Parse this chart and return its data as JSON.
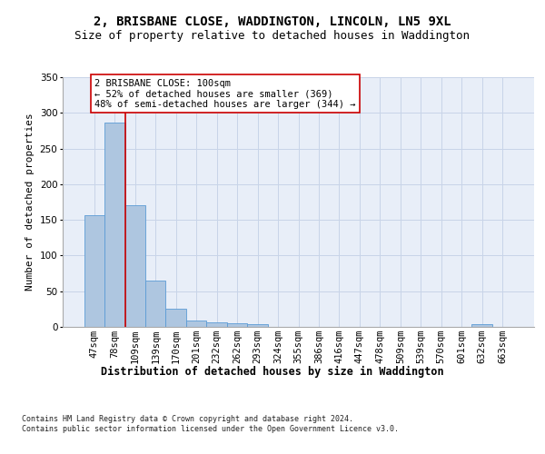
{
  "title1": "2, BRISBANE CLOSE, WADDINGTON, LINCOLN, LN5 9XL",
  "title2": "Size of property relative to detached houses in Waddington",
  "xlabel": "Distribution of detached houses by size in Waddington",
  "ylabel": "Number of detached properties",
  "categories": [
    "47sqm",
    "78sqm",
    "109sqm",
    "139sqm",
    "170sqm",
    "201sqm",
    "232sqm",
    "262sqm",
    "293sqm",
    "324sqm",
    "355sqm",
    "386sqm",
    "416sqm",
    "447sqm",
    "478sqm",
    "509sqm",
    "539sqm",
    "570sqm",
    "601sqm",
    "632sqm",
    "663sqm"
  ],
  "values": [
    156,
    286,
    170,
    65,
    25,
    9,
    7,
    5,
    4,
    0,
    0,
    0,
    0,
    0,
    0,
    0,
    0,
    0,
    0,
    4,
    0
  ],
  "bar_color": "#aec6e0",
  "bar_edge_color": "#5b9bd5",
  "grid_color": "#c8d4e8",
  "background_color": "#e8eef8",
  "ref_line_color": "#cc0000",
  "ref_line_x": 1.5,
  "annotation_text": "2 BRISBANE CLOSE: 100sqm\n← 52% of detached houses are smaller (369)\n48% of semi-detached houses are larger (344) →",
  "annotation_box_edge_color": "#cc0000",
  "ylim": [
    0,
    350
  ],
  "yticks": [
    0,
    50,
    100,
    150,
    200,
    250,
    300,
    350
  ],
  "footnote": "Contains HM Land Registry data © Crown copyright and database right 2024.\nContains public sector information licensed under the Open Government Licence v3.0.",
  "title1_fontsize": 10,
  "title2_fontsize": 9,
  "xlabel_fontsize": 8.5,
  "ylabel_fontsize": 8,
  "tick_fontsize": 7.5,
  "annotation_fontsize": 7.5,
  "footnote_fontsize": 6
}
